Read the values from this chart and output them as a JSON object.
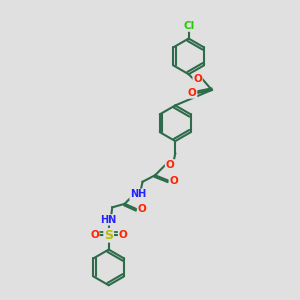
{
  "bg": "#e0e0e0",
  "bond_color": "#2d6b4a",
  "lw": 1.5,
  "dbo": 0.055,
  "r": 0.6,
  "colors": {
    "O": "#ff2200",
    "N": "#2222ff",
    "S": "#bbbb00",
    "Cl": "#22cc00",
    "C": "#2d6b4a",
    "H": "#2d6b4a"
  },
  "fs": 7.5,
  "figsize": [
    3.0,
    3.0
  ],
  "dpi": 100,
  "xlim": [
    0,
    10
  ],
  "ylim": [
    0,
    10
  ]
}
